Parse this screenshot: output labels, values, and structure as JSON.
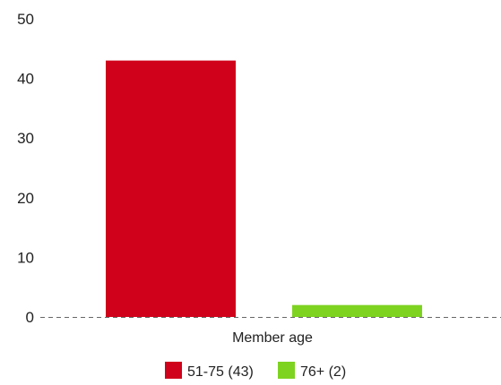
{
  "chart_data": {
    "type": "bar",
    "categories": [
      "Member age"
    ],
    "series": [
      {
        "name": "51-75 (43)",
        "values": [
          43
        ],
        "color": "#d0021b"
      },
      {
        "name": "76+ (2)",
        "values": [
          2
        ],
        "color": "#7ed321"
      }
    ],
    "xlabel": "Member age",
    "ylabel": "",
    "ylim": [
      0,
      50
    ],
    "yticks": [
      0,
      10,
      20,
      30,
      40,
      50
    ],
    "grid": false,
    "baseline": "dashed",
    "legend": "bottom-center"
  }
}
